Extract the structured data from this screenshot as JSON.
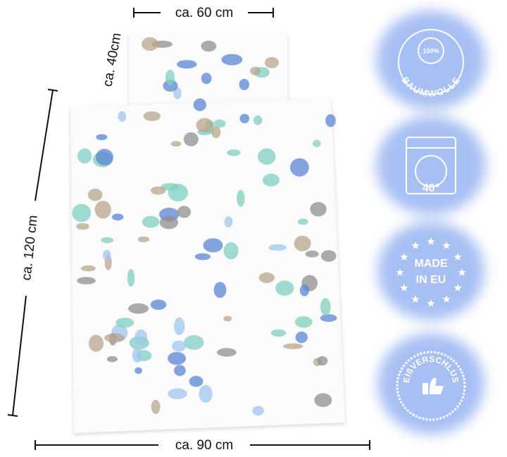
{
  "dimensions": {
    "pillow_width": "ca. 60 cm",
    "pillow_height": "ca. 40cm",
    "duvet_height": "ca. 120 cm",
    "duvet_width": "ca. 90 cm"
  },
  "badges": [
    {
      "top": "100%",
      "bottom": "BAUMWOLLE"
    },
    {
      "label": "40°"
    },
    {
      "line1": "MADE",
      "line2": "IN EU"
    },
    {
      "label": "REIßVERSCHLUSS"
    }
  ]
}
